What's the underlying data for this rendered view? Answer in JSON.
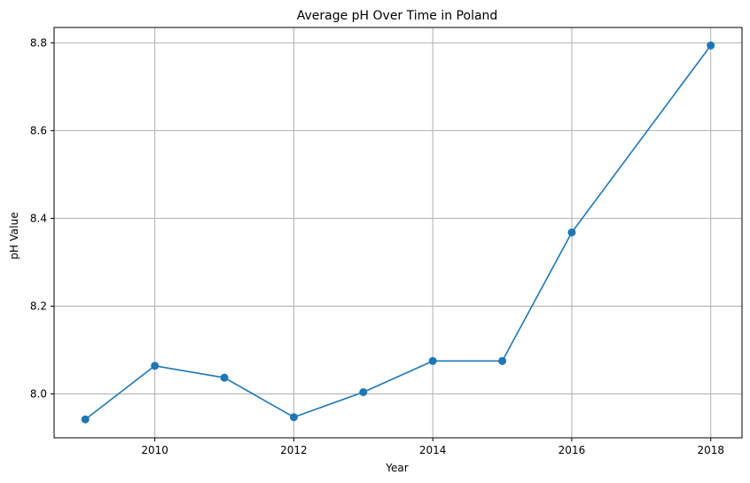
{
  "chart_data": {
    "type": "line",
    "title": "Average pH Over Time in Poland",
    "xlabel": "Year",
    "ylabel": "pH Value",
    "x": [
      2009,
      2010,
      2011,
      2012,
      2013,
      2014,
      2015,
      2016,
      2017,
      2018
    ],
    "series": [
      {
        "values": [
          7.942,
          8.064,
          8.037,
          7.947,
          8.004,
          8.075,
          8.075,
          8.368,
          null,
          8.794
        ]
      }
    ],
    "xticks": [
      2010,
      2012,
      2014,
      2016,
      2018
    ],
    "xtick_labels": [
      "2010",
      "2012",
      "2014",
      "2016",
      "2018"
    ],
    "yticks": [
      8.0,
      8.2,
      8.4,
      8.6,
      8.8
    ],
    "ytick_labels": [
      "8.0",
      "8.2",
      "8.4",
      "8.6",
      "8.8"
    ],
    "xlim": [
      2008.55,
      2018.45
    ],
    "ylim": [
      7.9,
      8.835
    ],
    "grid": true,
    "marker": "circle",
    "colors": {
      "series": "#1f77b4",
      "grid": "#b0b0b0",
      "axis": "#000000"
    }
  }
}
